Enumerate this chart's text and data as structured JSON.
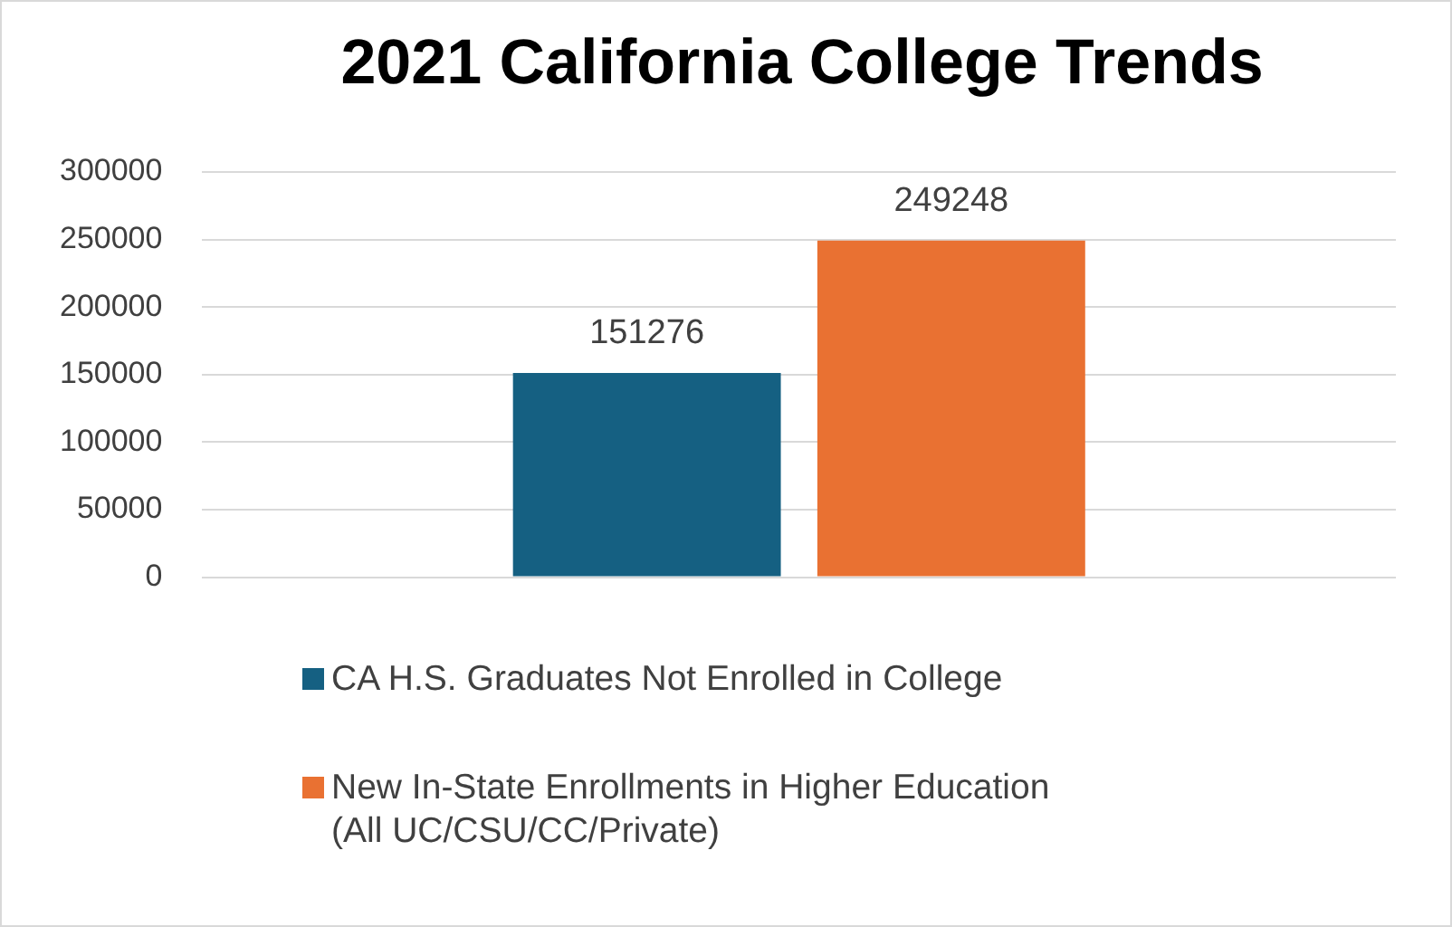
{
  "chart_data": {
    "type": "bar",
    "title": "2021 California College Trends",
    "categories": [
      null
    ],
    "series": [
      {
        "name": "CA H.S. Graduates Not Enrolled in College",
        "color": "#156082",
        "values": [
          151276
        ]
      },
      {
        "name": "New In-State Enrollments in Higher Education (All UC/CSU/CC/Private)",
        "color": "#e97132",
        "values": [
          249248
        ]
      }
    ],
    "ylim": [
      0,
      300000
    ],
    "yticks": [
      0,
      50000,
      100000,
      150000,
      200000,
      250000,
      300000
    ],
    "grid": "y",
    "legend": "bottom",
    "data_labels": true
  }
}
